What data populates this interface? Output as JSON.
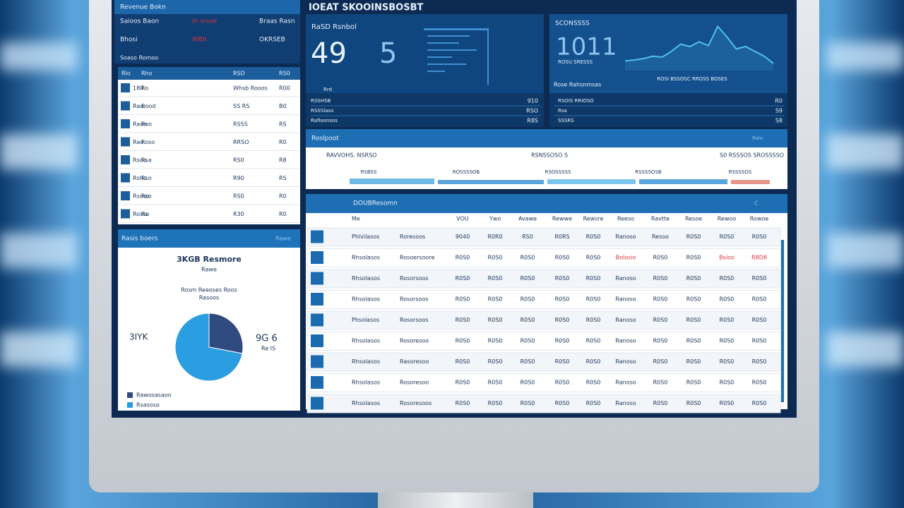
{
  "header": {
    "title": "IOEAT SKOOINSBOSBT"
  },
  "summary_panel": {
    "title": "Revenue Bokn",
    "rows": [
      [
        "Saioos Baon",
        "In srsoe",
        "Braas Rasn"
      ],
      [
        "Bhosi",
        "WBII",
        "OKRSEB"
      ]
    ],
    "footer": "Soaso Romoo"
  },
  "left_table": {
    "columns": [
      "Rlo",
      "Rho",
      "RSD",
      "RS0"
    ],
    "rows": [
      [
        "180",
        "Ro",
        "Whsb Rooos",
        "R00"
      ],
      [
        "Rao",
        "Bood",
        "SS RS",
        "B0"
      ],
      [
        "Raon",
        "Roo",
        "RSSS",
        "RS"
      ],
      [
        "Rao",
        "Roso",
        "RRSO",
        "R0"
      ],
      [
        "Rsoo",
        "Rsa",
        "RS0",
        "R8"
      ],
      [
        "Rsho",
        "Rso",
        "R90",
        "RS"
      ],
      [
        "Rsoso",
        "Rso",
        "RS0",
        "R0"
      ],
      [
        "Rosso",
        "Rs",
        "R30",
        "R0"
      ]
    ]
  },
  "pie_panel": {
    "title": "Rasis boers",
    "badge": "Rawe",
    "heading": "3KGB Resmore",
    "subheading": "Rawe",
    "caption": "Rosm Reeoses Roos",
    "caption2": "Rasoos",
    "left_label": "3IYK",
    "right_label": "9G 6",
    "right_sublabel": "Re IS",
    "chart_data": {
      "type": "pie",
      "series": [
        {
          "name": "Rawosasaoo",
          "color": "#2f4a7e",
          "values": [
            28
          ]
        },
        {
          "name": "Rsasoso",
          "color": "#2a9ee0",
          "values": [
            72
          ]
        }
      ]
    }
  },
  "kpi_panel": {
    "label": "RaSD Rsnbol",
    "big_value": "49",
    "second_value": "5",
    "note": "Rrd",
    "rows": [
      [
        "RSSHSB",
        "910"
      ],
      [
        "RSSSlaso",
        "RSO"
      ],
      [
        "Rafioonsos",
        "R8S"
      ]
    ]
  },
  "trend_panel": {
    "label": "SCONSSSS",
    "big_value": "1011",
    "caption": "ROSU SRESSS",
    "chart_caption": "ROSI BSSOSC RROSS BOSES",
    "sub_caption": "Rose Rahsnmsas",
    "chart_data": {
      "type": "line",
      "color": "#4fc0f0",
      "ylim": [
        0,
        100
      ],
      "values": [
        20,
        22,
        25,
        30,
        28,
        40,
        55,
        50,
        60,
        52,
        92,
        70,
        45,
        50,
        40,
        30,
        15
      ]
    },
    "rows": [
      [
        "RSOIS RRIOSO",
        "R0"
      ],
      [
        "Rsa",
        "S9"
      ],
      [
        "SSSRS",
        "S8"
      ]
    ]
  },
  "report_strip": {
    "title": "Roslpoot",
    "badge": "Rolo",
    "labels": [
      "RAVVOHS. NSRSO",
      "RSNSSOSO S",
      "S0 RSSSOS SROSSSSO"
    ],
    "sublabels": [
      "RSBSS",
      "ROSSSSOB",
      "RSOSSSSS",
      "RSSSSOSB",
      "RSSSSOS"
    ]
  },
  "main_table": {
    "title": "DOUBResomn",
    "badge": "C",
    "columns": [
      "Me",
      "",
      "VOU",
      "Ywo",
      "Avawe",
      "Rewwe",
      "Rewsre",
      "Reeso",
      "Ravtte",
      "Resoe",
      "Rewoo",
      "Rowoe"
    ],
    "rows": [
      [
        "Phlvilasos",
        "Roresoos",
        "9040",
        "R0R0",
        "RS0",
        "R0RS",
        "R0S0",
        "Ranoso",
        "Resoo",
        "R0S0",
        "R0S0",
        "R0S0"
      ],
      [
        "Rhsolasos",
        "Rosoersoore",
        "R0S0",
        "R0S0",
        "R0S0",
        "R0S0",
        "R0S0",
        "Bolosio",
        "R0S0",
        "R0S0",
        "Bsloo",
        "R8D8"
      ],
      [
        "Rhsolasos",
        "Rosorsoos",
        "R0S0",
        "R0S0",
        "R0S0",
        "R0S0",
        "R0S0",
        "Ranoso",
        "R0S0",
        "R0S0",
        "R0S0",
        "R0S0"
      ],
      [
        "Rhsolasos",
        "Rosorsoos",
        "R0S0",
        "R0S0",
        "R0S0",
        "R0S0",
        "R0S0",
        "Ranoso",
        "R0S0",
        "R0S0",
        "R0S0",
        "R0S0"
      ],
      [
        "Phsolasos",
        "Rosorsoos",
        "R0S0",
        "R0S0",
        "R0S0",
        "R0S0",
        "R0S0",
        "Ranoso",
        "R0S0",
        "R0S0",
        "R0S0",
        "R0S0"
      ],
      [
        "Rhsolasos",
        "Rosoresoo",
        "R0S0",
        "R0S0",
        "R0S0",
        "R0S0",
        "R0S0",
        "Ranoso",
        "R0S0",
        "R0S0",
        "R0S0",
        "R0S0"
      ],
      [
        "Rhsolasos",
        "Rasoresoo",
        "R0S0",
        "R0S0",
        "R0S0",
        "R0S0",
        "R0S0",
        "Ranoso",
        "R0S0",
        "R0S0",
        "R0S0",
        "R0S0"
      ],
      [
        "Rhsolasos",
        "Rosoresoo",
        "R0S0",
        "R0S0",
        "R0S0",
        "R0S0",
        "R0S0",
        "Ranoso",
        "R0S0",
        "R0S0",
        "R0S0",
        "R0S0"
      ],
      [
        "Rhsolasos",
        "Rosoresoos",
        "R0S0",
        "R0S0",
        "R0S0",
        "R0S0",
        "R0S0",
        "Ranoso",
        "R0S0",
        "R0S0",
        "R0S0",
        "R0S0"
      ]
    ]
  }
}
